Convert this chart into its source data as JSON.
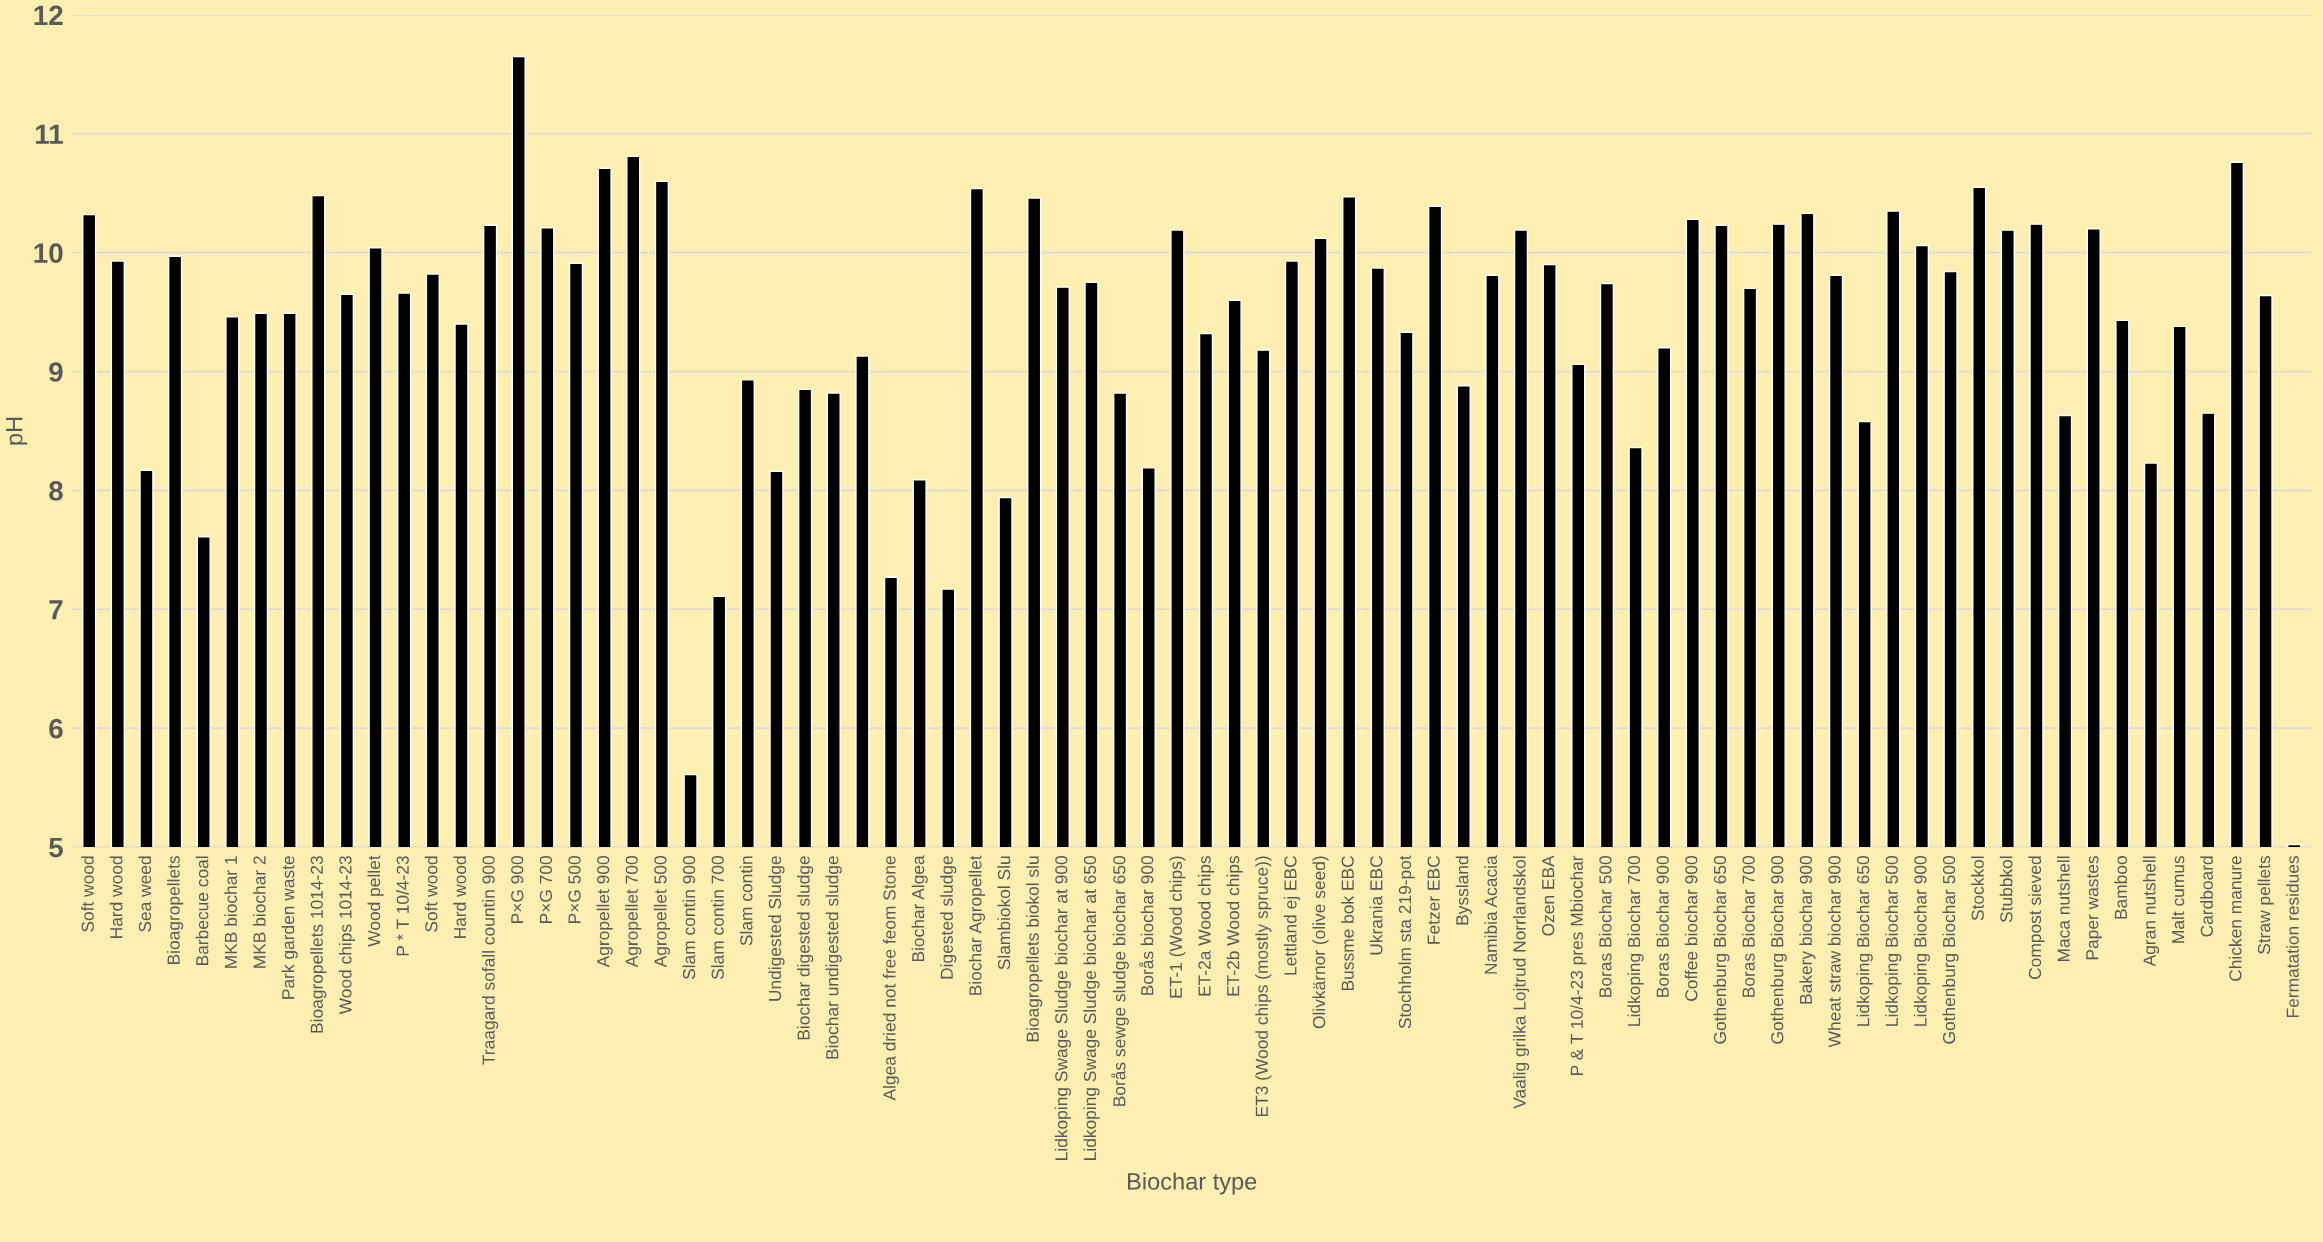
{
  "chart_data": {
    "type": "bar",
    "xlabel": "Biochar type",
    "ylabel": "pH",
    "color": "#000000",
    "categories": [
      "Soft wood",
      "Hard wood",
      "Sea weed",
      "Bioagropellets",
      "Barbecue coal",
      "MKB biochar 1",
      "MKB biochar 2",
      "Park garden waste",
      "Bioagropellets 1014-23",
      "Wood chips 1014-23",
      "Wood pellet",
      "P * T 10/4-23",
      "Soft wood",
      "Hard wood",
      "Traagard sofall countin 900",
      "P×G 900",
      "P×G 700",
      "P×G 500",
      "Agropellet 900",
      "Agropellet 700",
      "Agropellet 500",
      "Slam contin 900",
      "Slam contin 700",
      "Slam contin",
      "Undigested Sludge",
      "Biochar digested sludge",
      "Biochar undigested sludge",
      null,
      "Algea dried not free feom Stone",
      "Biochar Algea",
      "Digested sludge",
      "Biochar Agropellet",
      "Slambiokol Slu",
      "Bioagropellets biokol slu",
      "Lidkoping Swage Sludge biochar at 900",
      "Lidkoping Swage Sludge biochar at 650",
      "Borås sewge sludge biochar 650",
      "Borås biochar 900",
      "ET-1 (Wood chips)",
      "ET-2a Wood chips",
      "ET-2b Wood chips",
      "ET3 (Wood chips (mostly spruce))",
      "Lettland ej EBC",
      "Olivkärnor (olive seed)",
      "Bussme bok EBC",
      "Ukrania EBC",
      "Stochholm sta 219-pot",
      "Fetzer EBC",
      "Byssland",
      "Namibia Acacia",
      "Vaalig grilka Lojtrud Norrlandskol",
      "Ozen EBA",
      "P & T 10/4-23 pres Mbiochar",
      "Boras Biochar 500",
      "Lidkoping Biochar 700",
      "Boras Biochar 900",
      "Coffee biochar 900",
      "Gothenburg Biochar 650",
      "Boras Biochar 700",
      "Gothenburg Biochar 900",
      "Bakery biochar 900",
      "Wheat straw biochar 900",
      "Lidkoping Biochar 650",
      "Lidkoping Biochar 500",
      "Lidkoping Biochar 900",
      "Gothenburg Biochar 500",
      "Stockkol",
      "Stubbkol",
      "Compost sieved",
      "Maca nutshell",
      "Paper wastes",
      "Bamboo",
      "Agran nutshell",
      "Malt cumus",
      "Cardboard",
      "Chicken manure",
      "Straw pellets",
      "Fermatation residues"
    ],
    "values": [
      10.32,
      9.93,
      8.17,
      9.97,
      7.61,
      9.46,
      9.49,
      9.49,
      10.48,
      9.65,
      10.04,
      9.66,
      9.82,
      9.4,
      10.23,
      11.65,
      10.21,
      9.91,
      10.71,
      10.81,
      10.6,
      5.61,
      7.11,
      8.93,
      8.16,
      8.85,
      8.82,
      9.13,
      7.27,
      8.09,
      7.17,
      10.54,
      7.94,
      10.46,
      9.71,
      9.75,
      8.82,
      8.19,
      10.19,
      9.32,
      9.6,
      9.18,
      9.93,
      10.12,
      10.47,
      9.87,
      9.33,
      10.39,
      8.88,
      9.81,
      10.19,
      9.9,
      9.06,
      9.74,
      8.36,
      9.2,
      10.28,
      10.23,
      9.7,
      10.24,
      10.33,
      9.81,
      8.58,
      10.35,
      10.06,
      9.84,
      10.55,
      10.19,
      10.24,
      8.63,
      10.2,
      9.43,
      8.23,
      9.38,
      8.65,
      10.76,
      9.64,
      5.02
    ],
    "ylim": [
      5,
      12
    ],
    "yticks": [
      5,
      6,
      7,
      8,
      9,
      10,
      11,
      12
    ],
    "grid": "y"
  }
}
